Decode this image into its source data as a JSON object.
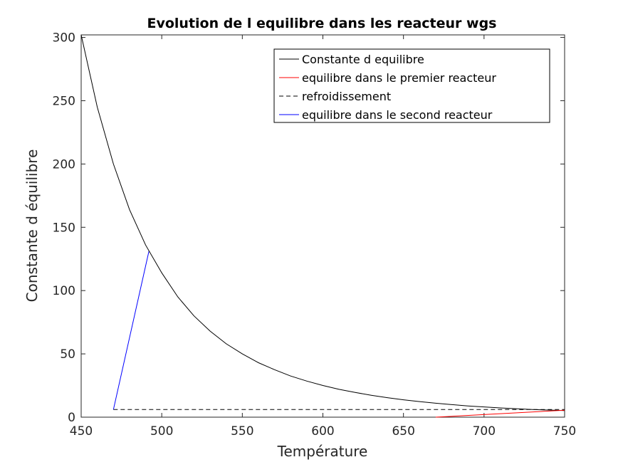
{
  "chart_data": {
    "type": "line",
    "title": "Evolution de l equilibre dans les reacteur wgs",
    "xlabel": "Température",
    "ylabel": "Constante d équilibre",
    "xlim": [
      450,
      750
    ],
    "ylim": [
      0,
      302
    ],
    "xticks": [
      "450",
      "500",
      "550",
      "600",
      "650",
      "700",
      "750"
    ],
    "yticks": [
      "0",
      "50",
      "100",
      "150",
      "200",
      "250",
      "300"
    ],
    "legend_position": "top-right",
    "grid": false,
    "series": [
      {
        "name": "Constante d equilibre",
        "color": "#000000",
        "style": "solid",
        "x": [
          450,
          460,
          470,
          480,
          490,
          500,
          510,
          520,
          530,
          540,
          550,
          560,
          570,
          580,
          590,
          600,
          610,
          620,
          630,
          640,
          650,
          660,
          670,
          680,
          690,
          700,
          710,
          720,
          730,
          740,
          750
        ],
        "y": [
          302,
          245,
          200,
          164,
          136,
          114,
          95,
          80,
          68,
          58,
          50,
          43,
          37.5,
          32.5,
          28.5,
          25,
          22,
          19.5,
          17.3,
          15.4,
          13.7,
          12.3,
          11,
          9.9,
          8.9,
          8.1,
          7.3,
          6.7,
          6.1,
          5.6,
          5.2
        ]
      },
      {
        "name": "equilibre dans le premier reacteur",
        "color": "#ff0000",
        "style": "solid",
        "x": [
          670,
          750
        ],
        "y": [
          0,
          5.5
        ]
      },
      {
        "name": "refroidissement",
        "color": "#000000",
        "style": "dashed",
        "x": [
          470,
          750
        ],
        "y": [
          6,
          6
        ]
      },
      {
        "name": "equilibre dans le second reacteur",
        "color": "#0000ff",
        "style": "solid",
        "x": [
          470,
          492
        ],
        "y": [
          6,
          131
        ]
      }
    ]
  }
}
